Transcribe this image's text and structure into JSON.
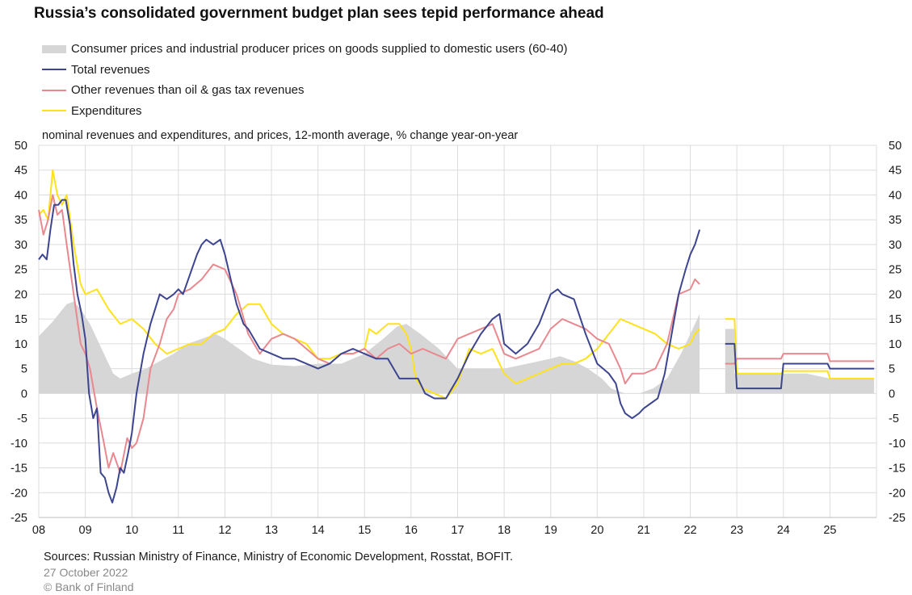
{
  "title": "Russia’s consolidated government budget plan sees tepid performance ahead",
  "subtitle": "nominal revenues and expenditures, and prices, 12-month average, % change year-on-year",
  "sources": "Sources: Russian Ministry of Finance, Ministry of Economic Development, Rosstat, BOFIT.",
  "date": "27 October 2022",
  "copyright": "© Bank of Finland",
  "legend": [
    {
      "label": "Consumer prices and industrial producer prices on goods supplied to domestic users (60-40)",
      "color": "#d6d6d6",
      "kind": "band"
    },
    {
      "label": "Total revenues",
      "color": "#3d4590",
      "kind": "line"
    },
    {
      "label": "Other revenues than oil & gas tax revenues",
      "color": "#e9888f",
      "kind": "line"
    },
    {
      "label": "Expenditures",
      "color": "#ffe21a",
      "kind": "line"
    }
  ],
  "chart_data": {
    "type": "line",
    "xlim": [
      2008,
      2026
    ],
    "ylim": [
      -25,
      50
    ],
    "yticks": [
      -25,
      -20,
      -15,
      -10,
      -5,
      0,
      5,
      10,
      15,
      20,
      25,
      30,
      35,
      40,
      45,
      50
    ],
    "xtick_labels": [
      "08",
      "09",
      "10",
      "11",
      "12",
      "13",
      "14",
      "15",
      "16",
      "17",
      "18",
      "19",
      "20",
      "21",
      "22",
      "23",
      "24",
      "25"
    ],
    "grid": true,
    "series": [
      {
        "name": "Consumer prices and industrial producer prices on goods supplied to domestic users (60-40)",
        "type": "area",
        "color": "#d6d6d6",
        "x": [
          2008.0,
          2008.3,
          2008.6,
          2008.75,
          2008.9,
          2009.1,
          2009.4,
          2009.6,
          2009.75,
          2010.0,
          2010.3,
          2010.6,
          2010.9,
          2011.2,
          2011.5,
          2011.8,
          2012.0,
          2012.3,
          2012.6,
          2013.0,
          2013.5,
          2014.0,
          2014.5,
          2015.0,
          2015.4,
          2015.7,
          2015.9,
          2016.2,
          2016.6,
          2017.0,
          2017.5,
          2018.0,
          2018.5,
          2019.0,
          2019.2,
          2019.5,
          2019.8,
          2020.1,
          2020.3,
          2020.6,
          2020.9,
          2021.2,
          2021.5,
          2021.8,
          2022.0,
          2022.2,
          null,
          2022.75,
          2022.95,
          null,
          2022.95,
          2023.0,
          2023.5,
          2024.0,
          2024.5,
          2025.0,
          2025.5,
          2025.95
        ],
        "values": [
          11.5,
          14.5,
          18,
          18.5,
          17,
          14,
          8,
          4,
          3,
          4,
          5,
          6.5,
          8,
          10,
          11,
          12,
          11,
          9,
          7,
          5.8,
          5.5,
          6,
          6,
          8,
          11,
          13.5,
          14,
          12,
          9,
          5,
          5,
          5,
          6,
          7,
          7.5,
          6.5,
          5,
          3,
          1,
          0,
          0,
          1,
          3,
          8,
          12,
          16,
          null,
          13,
          13,
          null,
          4,
          4,
          4,
          4,
          4,
          3,
          3,
          3
        ]
      },
      {
        "name": "Total revenues",
        "type": "line",
        "color": "#3d4590",
        "x": [
          2008.0,
          2008.08,
          2008.17,
          2008.25,
          2008.33,
          2008.42,
          2008.5,
          2008.58,
          2008.67,
          2008.75,
          2008.83,
          2008.92,
          2009.0,
          2009.08,
          2009.17,
          2009.25,
          2009.33,
          2009.42,
          2009.5,
          2009.58,
          2009.67,
          2009.75,
          2009.83,
          2009.92,
          2010.0,
          2010.1,
          2010.25,
          2010.4,
          2010.5,
          2010.6,
          2010.75,
          2010.9,
          2011.0,
          2011.1,
          2011.25,
          2011.4,
          2011.5,
          2011.6,
          2011.75,
          2011.9,
          2012.0,
          2012.1,
          2012.25,
          2012.4,
          2012.5,
          2012.75,
          2013.0,
          2013.25,
          2013.5,
          2013.75,
          2014.0,
          2014.25,
          2014.5,
          2014.75,
          2015.0,
          2015.25,
          2015.5,
          2015.75,
          2016.0,
          2016.15,
          2016.3,
          2016.5,
          2016.75,
          2017.0,
          2017.25,
          2017.5,
          2017.75,
          2017.9,
          2018.0,
          2018.25,
          2018.5,
          2018.75,
          2019.0,
          2019.15,
          2019.25,
          2019.5,
          2019.75,
          2020.0,
          2020.25,
          2020.4,
          2020.5,
          2020.6,
          2020.75,
          2020.9,
          2021.0,
          2021.15,
          2021.3,
          2021.45,
          2021.6,
          2021.75,
          2021.9,
          2022.0,
          2022.1,
          2022.2,
          null,
          2022.75,
          2022.95,
          2023.0,
          2023.25,
          2023.5,
          2023.75,
          2023.95,
          2024.0,
          2024.5,
          2024.95,
          2025.0,
          2025.5,
          2025.95
        ],
        "values": [
          27,
          28,
          27,
          33,
          38,
          38,
          39,
          39,
          34,
          26,
          20,
          16,
          11,
          0,
          -5,
          -3,
          -16,
          -17,
          -20,
          -22,
          -19,
          -15,
          -16,
          -12,
          -8,
          0,
          8,
          14,
          17,
          20,
          19,
          20,
          21,
          20,
          24,
          28,
          30,
          31,
          30,
          31,
          28,
          24,
          18,
          14,
          13,
          9,
          8,
          7,
          7,
          6,
          5,
          6,
          8,
          9,
          8,
          7,
          7,
          3,
          3,
          3,
          0,
          -1,
          -1,
          3,
          8,
          12,
          15,
          16,
          10,
          8,
          10,
          14,
          20,
          21,
          20,
          19,
          12,
          6,
          4,
          2,
          -2,
          -4,
          -5,
          -4,
          -3,
          -2,
          -1,
          4,
          12,
          20,
          25,
          28,
          30,
          33,
          null,
          10,
          10,
          1,
          1,
          1,
          1,
          1,
          6,
          6,
          6,
          5,
          5,
          5
        ]
      },
      {
        "name": "Other revenues than oil & gas tax revenues",
        "type": "line",
        "color": "#e9888f",
        "x": [
          2008.0,
          2008.1,
          2008.2,
          2008.3,
          2008.4,
          2008.5,
          2008.6,
          2008.75,
          2008.9,
          2009.0,
          2009.1,
          2009.25,
          2009.4,
          2009.5,
          2009.6,
          2009.75,
          2009.9,
          2010.0,
          2010.1,
          2010.25,
          2010.4,
          2010.6,
          2010.75,
          2010.9,
          2011.0,
          2011.25,
          2011.5,
          2011.75,
          2012.0,
          2012.25,
          2012.5,
          2012.75,
          2013.0,
          2013.25,
          2013.5,
          2013.75,
          2014.0,
          2014.25,
          2014.5,
          2014.75,
          2015.0,
          2015.25,
          2015.5,
          2015.75,
          2016.0,
          2016.25,
          2016.5,
          2016.75,
          2017.0,
          2017.25,
          2017.5,
          2017.75,
          2018.0,
          2018.25,
          2018.5,
          2018.75,
          2019.0,
          2019.25,
          2019.5,
          2019.75,
          2020.0,
          2020.25,
          2020.5,
          2020.6,
          2020.75,
          2021.0,
          2021.25,
          2021.5,
          2021.75,
          2022.0,
          2022.1,
          2022.2,
          null,
          2022.75,
          2022.95,
          2023.0,
          2023.5,
          2023.95,
          2024.0,
          2024.5,
          2024.95,
          2025.0,
          2025.5,
          2025.95
        ],
        "values": [
          37,
          32,
          35,
          40,
          36,
          37,
          30,
          20,
          10,
          8,
          5,
          -3,
          -10,
          -15,
          -12,
          -16,
          -9,
          -11,
          -10,
          -5,
          5,
          10,
          15,
          17,
          20,
          21,
          23,
          26,
          25,
          20,
          12,
          8,
          11,
          12,
          11,
          9,
          7,
          6,
          8,
          8,
          9,
          7,
          9,
          10,
          8,
          9,
          8,
          7,
          11,
          12,
          13,
          14,
          8,
          7,
          8,
          9,
          13,
          15,
          14,
          13,
          11,
          10,
          5,
          2,
          4,
          4,
          5,
          10,
          20,
          21,
          23,
          22,
          null,
          6,
          6,
          7,
          7,
          7,
          8,
          8,
          8,
          6.5,
          6.5,
          6.5
        ]
      },
      {
        "name": "Expenditures",
        "type": "line",
        "color": "#ffe21a",
        "x": [
          2008.0,
          2008.1,
          2008.2,
          2008.3,
          2008.4,
          2008.5,
          2008.6,
          2008.75,
          2008.9,
          2009.0,
          2009.25,
          2009.5,
          2009.75,
          2010.0,
          2010.25,
          2010.5,
          2010.75,
          2011.0,
          2011.25,
          2011.5,
          2011.75,
          2012.0,
          2012.25,
          2012.5,
          2012.75,
          2013.0,
          2013.25,
          2013.5,
          2013.75,
          2014.0,
          2014.25,
          2014.5,
          2014.75,
          2015.0,
          2015.1,
          2015.25,
          2015.5,
          2015.75,
          2015.9,
          2016.0,
          2016.1,
          2016.25,
          2016.5,
          2016.75,
          2017.0,
          2017.25,
          2017.5,
          2017.75,
          2018.0,
          2018.25,
          2018.5,
          2018.75,
          2019.0,
          2019.25,
          2019.5,
          2019.75,
          2020.0,
          2020.25,
          2020.5,
          2020.75,
          2021.0,
          2021.25,
          2021.5,
          2021.75,
          2022.0,
          2022.1,
          2022.2,
          null,
          2022.75,
          2022.95,
          2023.0,
          2023.5,
          2023.95,
          2024.0,
          2024.5,
          2024.95,
          2025.0,
          2025.5,
          2025.95
        ],
        "values": [
          36,
          37,
          35,
          45,
          40,
          38,
          40,
          30,
          22,
          20,
          21,
          17,
          14,
          15,
          13,
          10,
          8,
          9,
          10,
          10,
          12,
          13,
          16,
          18,
          18,
          14,
          12,
          11,
          10,
          7,
          7,
          8,
          8,
          9,
          13,
          12,
          14,
          14,
          12,
          9,
          3,
          1,
          0,
          -1,
          2,
          9,
          8,
          9,
          4,
          2,
          3,
          4,
          5,
          6,
          6,
          7,
          9,
          12,
          15,
          14,
          13,
          12,
          10,
          9,
          10,
          12,
          13,
          null,
          15,
          15,
          4,
          4,
          4,
          4.5,
          4.5,
          4.5,
          3,
          3,
          3
        ]
      }
    ]
  }
}
